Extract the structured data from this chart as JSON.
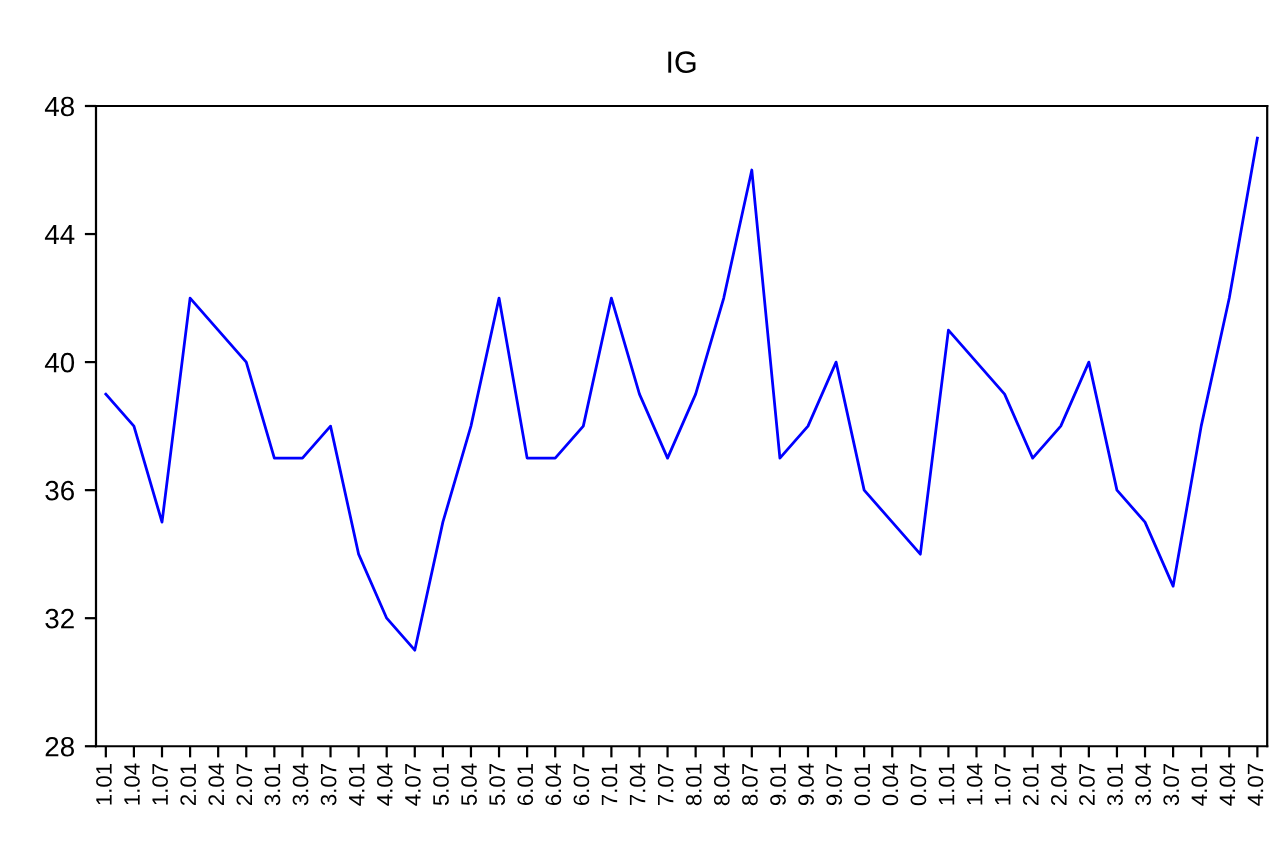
{
  "chart_data": {
    "type": "line",
    "title": "IG",
    "categories": [
      "1.01",
      "1.04",
      "1.07",
      "2.01",
      "2.04",
      "2.07",
      "3.01",
      "3.04",
      "3.07",
      "4.01",
      "4.04",
      "4.07",
      "5.01",
      "5.04",
      "5.07",
      "6.01",
      "6.04",
      "6.07",
      "7.01",
      "7.04",
      "7.07",
      "8.01",
      "8.04",
      "8.07",
      "9.01",
      "9.04",
      "9.07",
      "0.01",
      "0.04",
      "0.07",
      "1.01",
      "1.04",
      "1.07",
      "2.01",
      "2.04",
      "2.07",
      "3.01",
      "3.04",
      "3.07",
      "4.01",
      "4.04",
      "4.07"
    ],
    "series": [
      {
        "color": "#0000ff",
        "values": [
          39,
          38,
          35,
          42,
          41,
          40,
          37,
          37,
          38,
          34,
          32,
          31,
          35,
          38,
          42,
          37,
          37,
          38,
          42,
          39,
          37,
          39,
          42,
          46,
          37,
          38,
          40,
          36,
          35,
          34,
          41,
          40,
          39,
          37,
          38,
          40,
          36,
          35,
          33,
          38,
          42,
          47
        ]
      }
    ],
    "ylim": [
      28,
      48
    ],
    "yticks": [
      28,
      32,
      36,
      40,
      44,
      48
    ],
    "grid": false,
    "legend": false
  }
}
